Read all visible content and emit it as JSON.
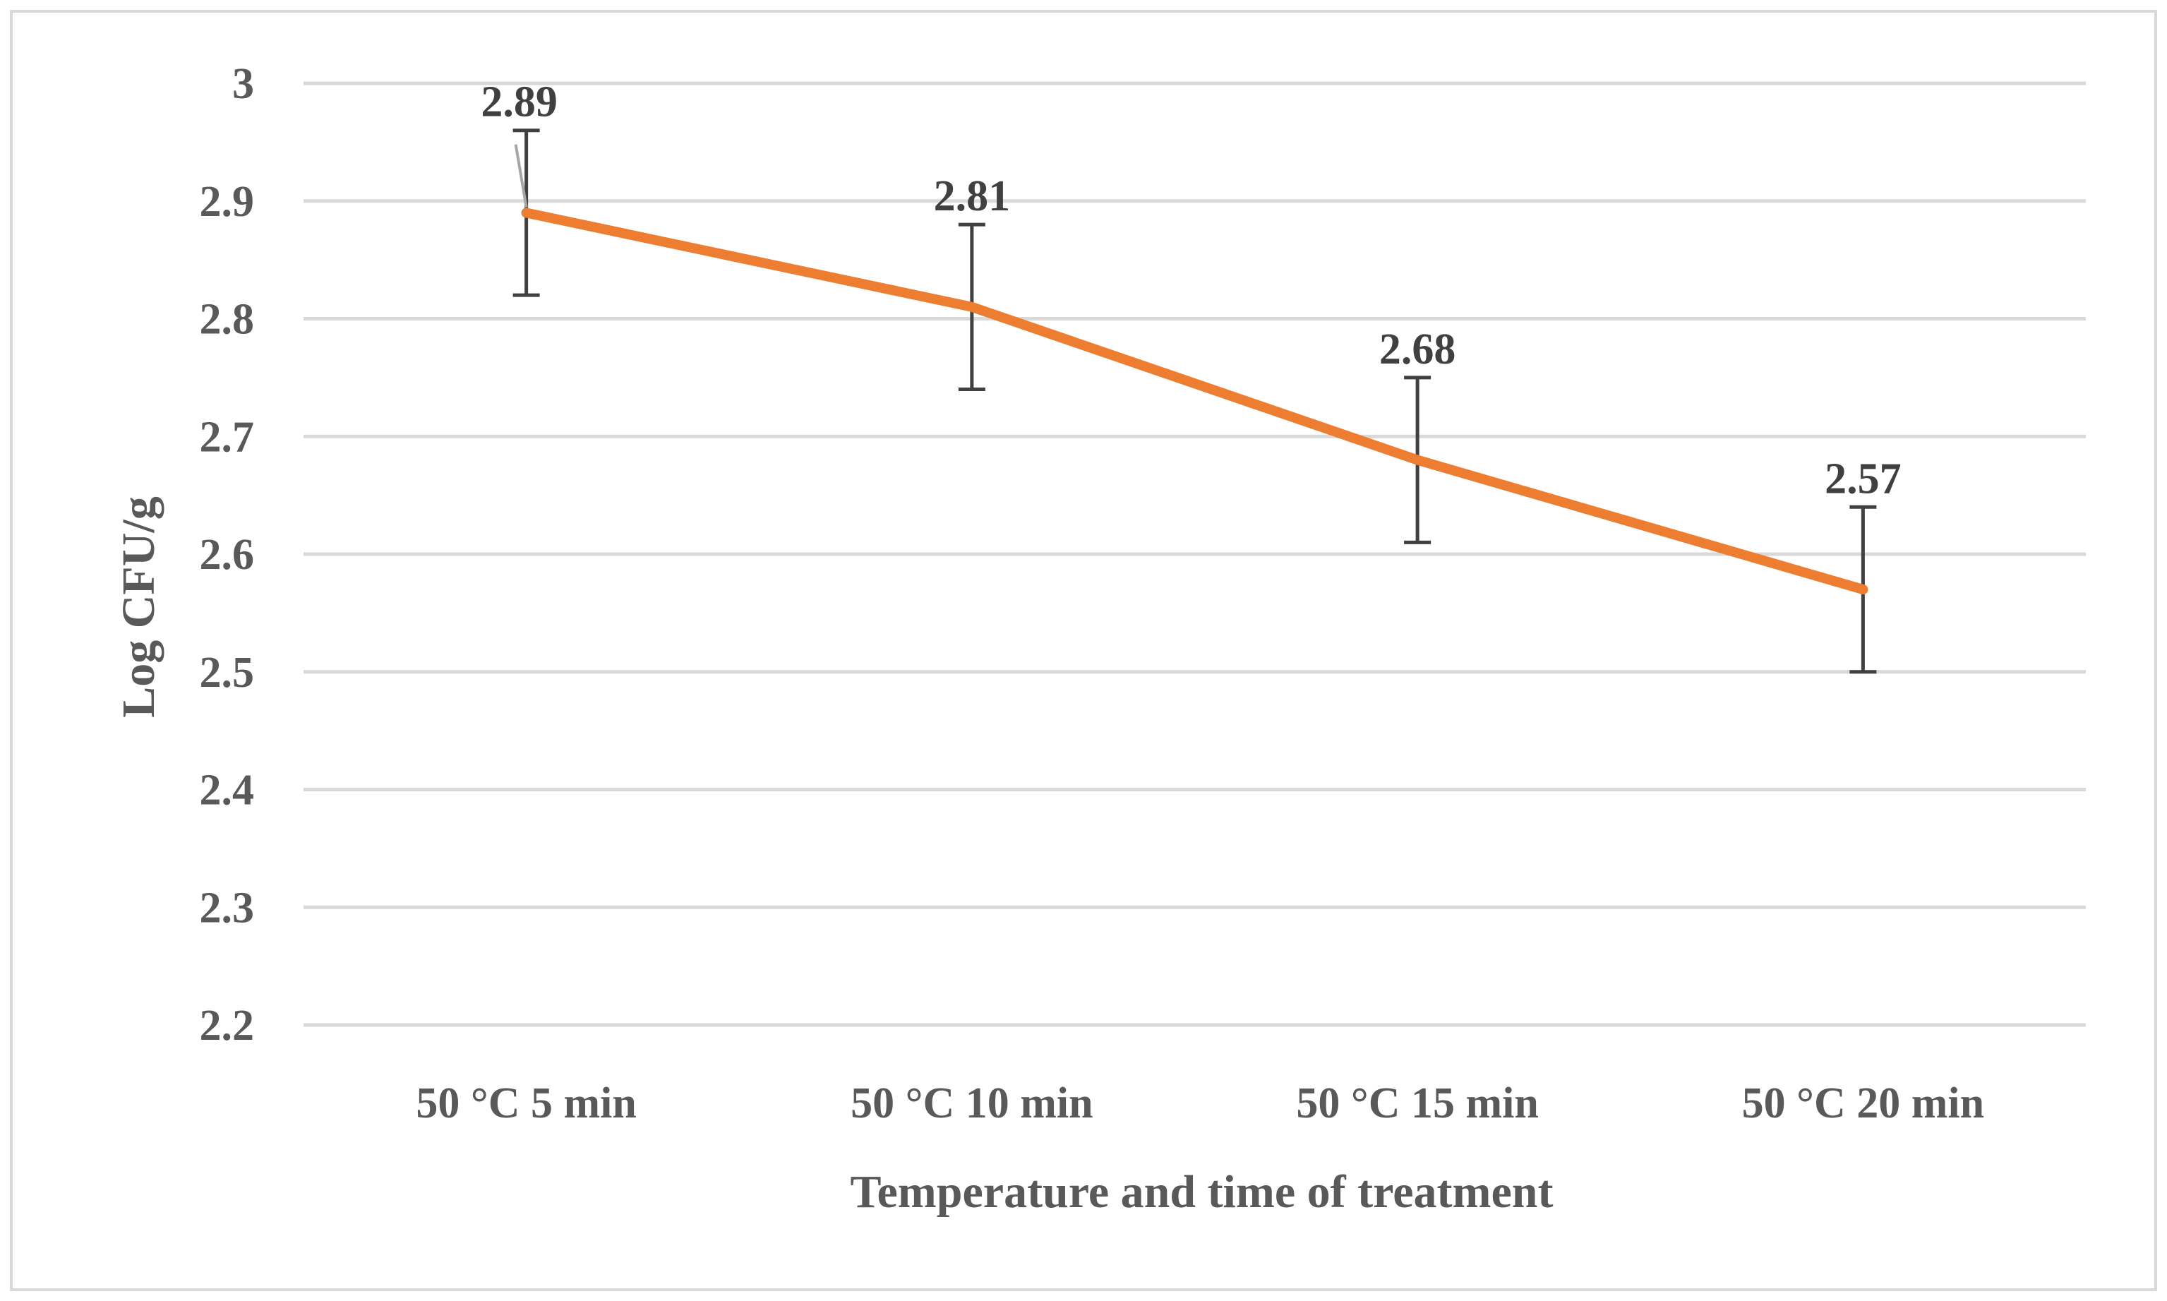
{
  "chart_data": {
    "type": "line",
    "title": "",
    "xlabel": "Temperature and time of treatment",
    "ylabel": "Log CFU/g",
    "categories": [
      "50 °C 5 min",
      "50 °C 10 min",
      "50 °C 15 min",
      "50 °C 20 min"
    ],
    "series": [
      {
        "name": "Log CFU/g",
        "values": [
          2.89,
          2.81,
          2.68,
          2.57
        ],
        "error_upper": [
          2.96,
          2.88,
          2.75,
          2.64
        ],
        "error_lower": [
          2.82,
          2.74,
          2.61,
          2.5
        ],
        "color": "#ED7D31"
      }
    ],
    "data_labels": [
      "2.89",
      "2.81",
      "2.68",
      "2.57"
    ],
    "ylim": [
      2.2,
      3.0
    ],
    "yticks": [
      "2.2",
      "2.3",
      "2.4",
      "2.5",
      "2.6",
      "2.7",
      "2.8",
      "2.9",
      "3"
    ],
    "grid": true,
    "legend": "none"
  },
  "colors": {
    "line": "#ED7D31",
    "grid": "#D9D9D9",
    "error_bar": "#404040",
    "frame": "#D9D9D9",
    "text": "#595959"
  }
}
